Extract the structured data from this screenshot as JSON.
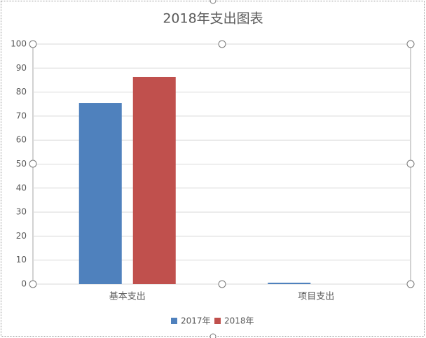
{
  "chart_data": {
    "type": "bar",
    "title": "2018年支出图表",
    "categories": [
      "基本支出",
      "项目支出"
    ],
    "series": [
      {
        "name": "2017年",
        "color": "#4f81bd",
        "values": [
          75.5,
          0.6
        ]
      },
      {
        "name": "2018年",
        "color": "#c0504d",
        "values": [
          86.3,
          0
        ]
      }
    ],
    "ylim": [
      0,
      100
    ],
    "yticks": [
      0,
      10,
      20,
      30,
      40,
      50,
      60,
      70,
      80,
      90,
      100
    ],
    "grid": true,
    "legend": "bottom"
  }
}
